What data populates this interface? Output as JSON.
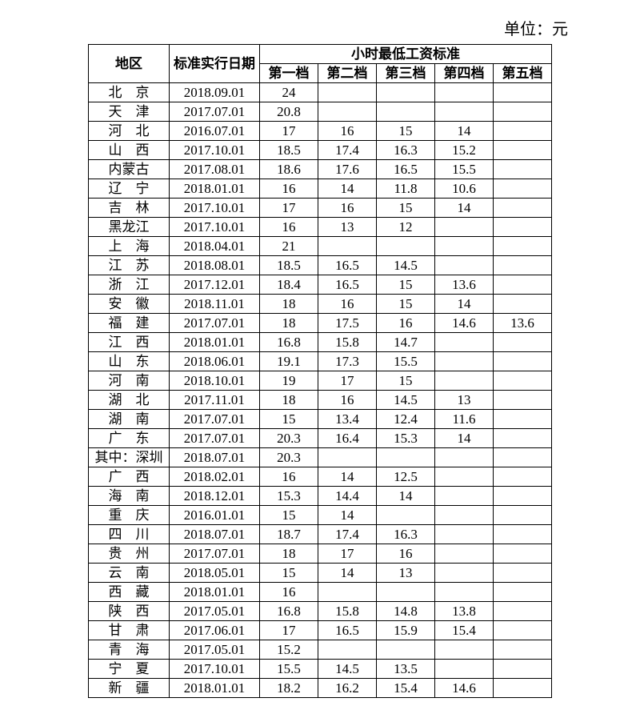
{
  "unit_label": "单位：元",
  "headers": {
    "region": "地区",
    "date": "标准实行日期",
    "group": "小时最低工资标准",
    "tier1": "第一档",
    "tier2": "第二档",
    "tier3": "第三档",
    "tier4": "第四档",
    "tier5": "第五档"
  },
  "columns": {
    "region_width": 100,
    "date_width": 112,
    "tier_width": 72
  },
  "font_size_pt": 13,
  "border_color": "#000000",
  "background_color": "#ffffff",
  "text_color": "#000000",
  "rows": [
    {
      "region": "北　京",
      "date": "2018.09.01",
      "t1": "24",
      "t2": "",
      "t3": "",
      "t4": "",
      "t5": ""
    },
    {
      "region": "天　津",
      "date": "2017.07.01",
      "t1": "20.8",
      "t2": "",
      "t3": "",
      "t4": "",
      "t5": ""
    },
    {
      "region": "河　北",
      "date": "2016.07.01",
      "t1": "17",
      "t2": "16",
      "t3": "15",
      "t4": "14",
      "t5": ""
    },
    {
      "region": "山　西",
      "date": "2017.10.01",
      "t1": "18.5",
      "t2": "17.4",
      "t3": "16.3",
      "t4": "15.2",
      "t5": ""
    },
    {
      "region": "内蒙古",
      "date": "2017.08.01",
      "t1": "18.6",
      "t2": "17.6",
      "t3": "16.5",
      "t4": "15.5",
      "t5": ""
    },
    {
      "region": "辽　宁",
      "date": "2018.01.01",
      "t1": "16",
      "t2": "14",
      "t3": "11.8",
      "t4": "10.6",
      "t5": ""
    },
    {
      "region": "吉　林",
      "date": "2017.10.01",
      "t1": "17",
      "t2": "16",
      "t3": "15",
      "t4": "14",
      "t5": ""
    },
    {
      "region": "黑龙江",
      "date": "2017.10.01",
      "t1": "16",
      "t2": "13",
      "t3": "12",
      "t4": "",
      "t5": ""
    },
    {
      "region": "上　海",
      "date": "2018.04.01",
      "t1": "21",
      "t2": "",
      "t3": "",
      "t4": "",
      "t5": ""
    },
    {
      "region": "江　苏",
      "date": "2018.08.01",
      "t1": "18.5",
      "t2": "16.5",
      "t3": "14.5",
      "t4": "",
      "t5": ""
    },
    {
      "region": "浙　江",
      "date": "2017.12.01",
      "t1": "18.4",
      "t2": "16.5",
      "t3": "15",
      "t4": "13.6",
      "t5": ""
    },
    {
      "region": "安　徽",
      "date": "2018.11.01",
      "t1": "18",
      "t2": "16",
      "t3": "15",
      "t4": "14",
      "t5": ""
    },
    {
      "region": "福　建",
      "date": "2017.07.01",
      "t1": "18",
      "t2": "17.5",
      "t3": "16",
      "t4": "14.6",
      "t5": "13.6"
    },
    {
      "region": "江　西",
      "date": "2018.01.01",
      "t1": "16.8",
      "t2": "15.8",
      "t3": "14.7",
      "t4": "",
      "t5": ""
    },
    {
      "region": "山　东",
      "date": "2018.06.01",
      "t1": "19.1",
      "t2": "17.3",
      "t3": "15.5",
      "t4": "",
      "t5": ""
    },
    {
      "region": "河　南",
      "date": "2018.10.01",
      "t1": "19",
      "t2": "17",
      "t3": "15",
      "t4": "",
      "t5": ""
    },
    {
      "region": "湖　北",
      "date": "2017.11.01",
      "t1": "18",
      "t2": "16",
      "t3": "14.5",
      "t4": "13",
      "t5": ""
    },
    {
      "region": "湖　南",
      "date": "2017.07.01",
      "t1": "15",
      "t2": "13.4",
      "t3": "12.4",
      "t4": "11.6",
      "t5": ""
    },
    {
      "region": "广　东",
      "date": "2017.07.01",
      "t1": "20.3",
      "t2": "16.4",
      "t3": "15.3",
      "t4": "14",
      "t5": ""
    },
    {
      "region": "其中：深圳",
      "date": "2018.07.01",
      "t1": "20.3",
      "t2": "",
      "t3": "",
      "t4": "",
      "t5": ""
    },
    {
      "region": "广　西",
      "date": "2018.02.01",
      "t1": "16",
      "t2": "14",
      "t3": "12.5",
      "t4": "",
      "t5": ""
    },
    {
      "region": "海　南",
      "date": "2018.12.01",
      "t1": "15.3",
      "t2": "14.4",
      "t3": "14",
      "t4": "",
      "t5": ""
    },
    {
      "region": "重　庆",
      "date": "2016.01.01",
      "t1": "15",
      "t2": "14",
      "t3": "",
      "t4": "",
      "t5": ""
    },
    {
      "region": "四　川",
      "date": "2018.07.01",
      "t1": "18.7",
      "t2": "17.4",
      "t3": "16.3",
      "t4": "",
      "t5": ""
    },
    {
      "region": "贵　州",
      "date": "2017.07.01",
      "t1": "18",
      "t2": "17",
      "t3": "16",
      "t4": "",
      "t5": ""
    },
    {
      "region": "云　南",
      "date": "2018.05.01",
      "t1": "15",
      "t2": "14",
      "t3": "13",
      "t4": "",
      "t5": ""
    },
    {
      "region": "西　藏",
      "date": "2018.01.01",
      "t1": "16",
      "t2": "",
      "t3": "",
      "t4": "",
      "t5": ""
    },
    {
      "region": "陕　西",
      "date": "2017.05.01",
      "t1": "16.8",
      "t2": "15.8",
      "t3": "14.8",
      "t4": "13.8",
      "t5": ""
    },
    {
      "region": "甘　肃",
      "date": "2017.06.01",
      "t1": "17",
      "t2": "16.5",
      "t3": "15.9",
      "t4": "15.4",
      "t5": ""
    },
    {
      "region": "青　海",
      "date": "2017.05.01",
      "t1": "15.2",
      "t2": "",
      "t3": "",
      "t4": "",
      "t5": ""
    },
    {
      "region": "宁　夏",
      "date": "2017.10.01",
      "t1": "15.5",
      "t2": "14.5",
      "t3": "13.5",
      "t4": "",
      "t5": ""
    },
    {
      "region": "新　疆",
      "date": "2018.01.01",
      "t1": "18.2",
      "t2": "16.2",
      "t3": "15.4",
      "t4": "14.6",
      "t5": ""
    }
  ]
}
